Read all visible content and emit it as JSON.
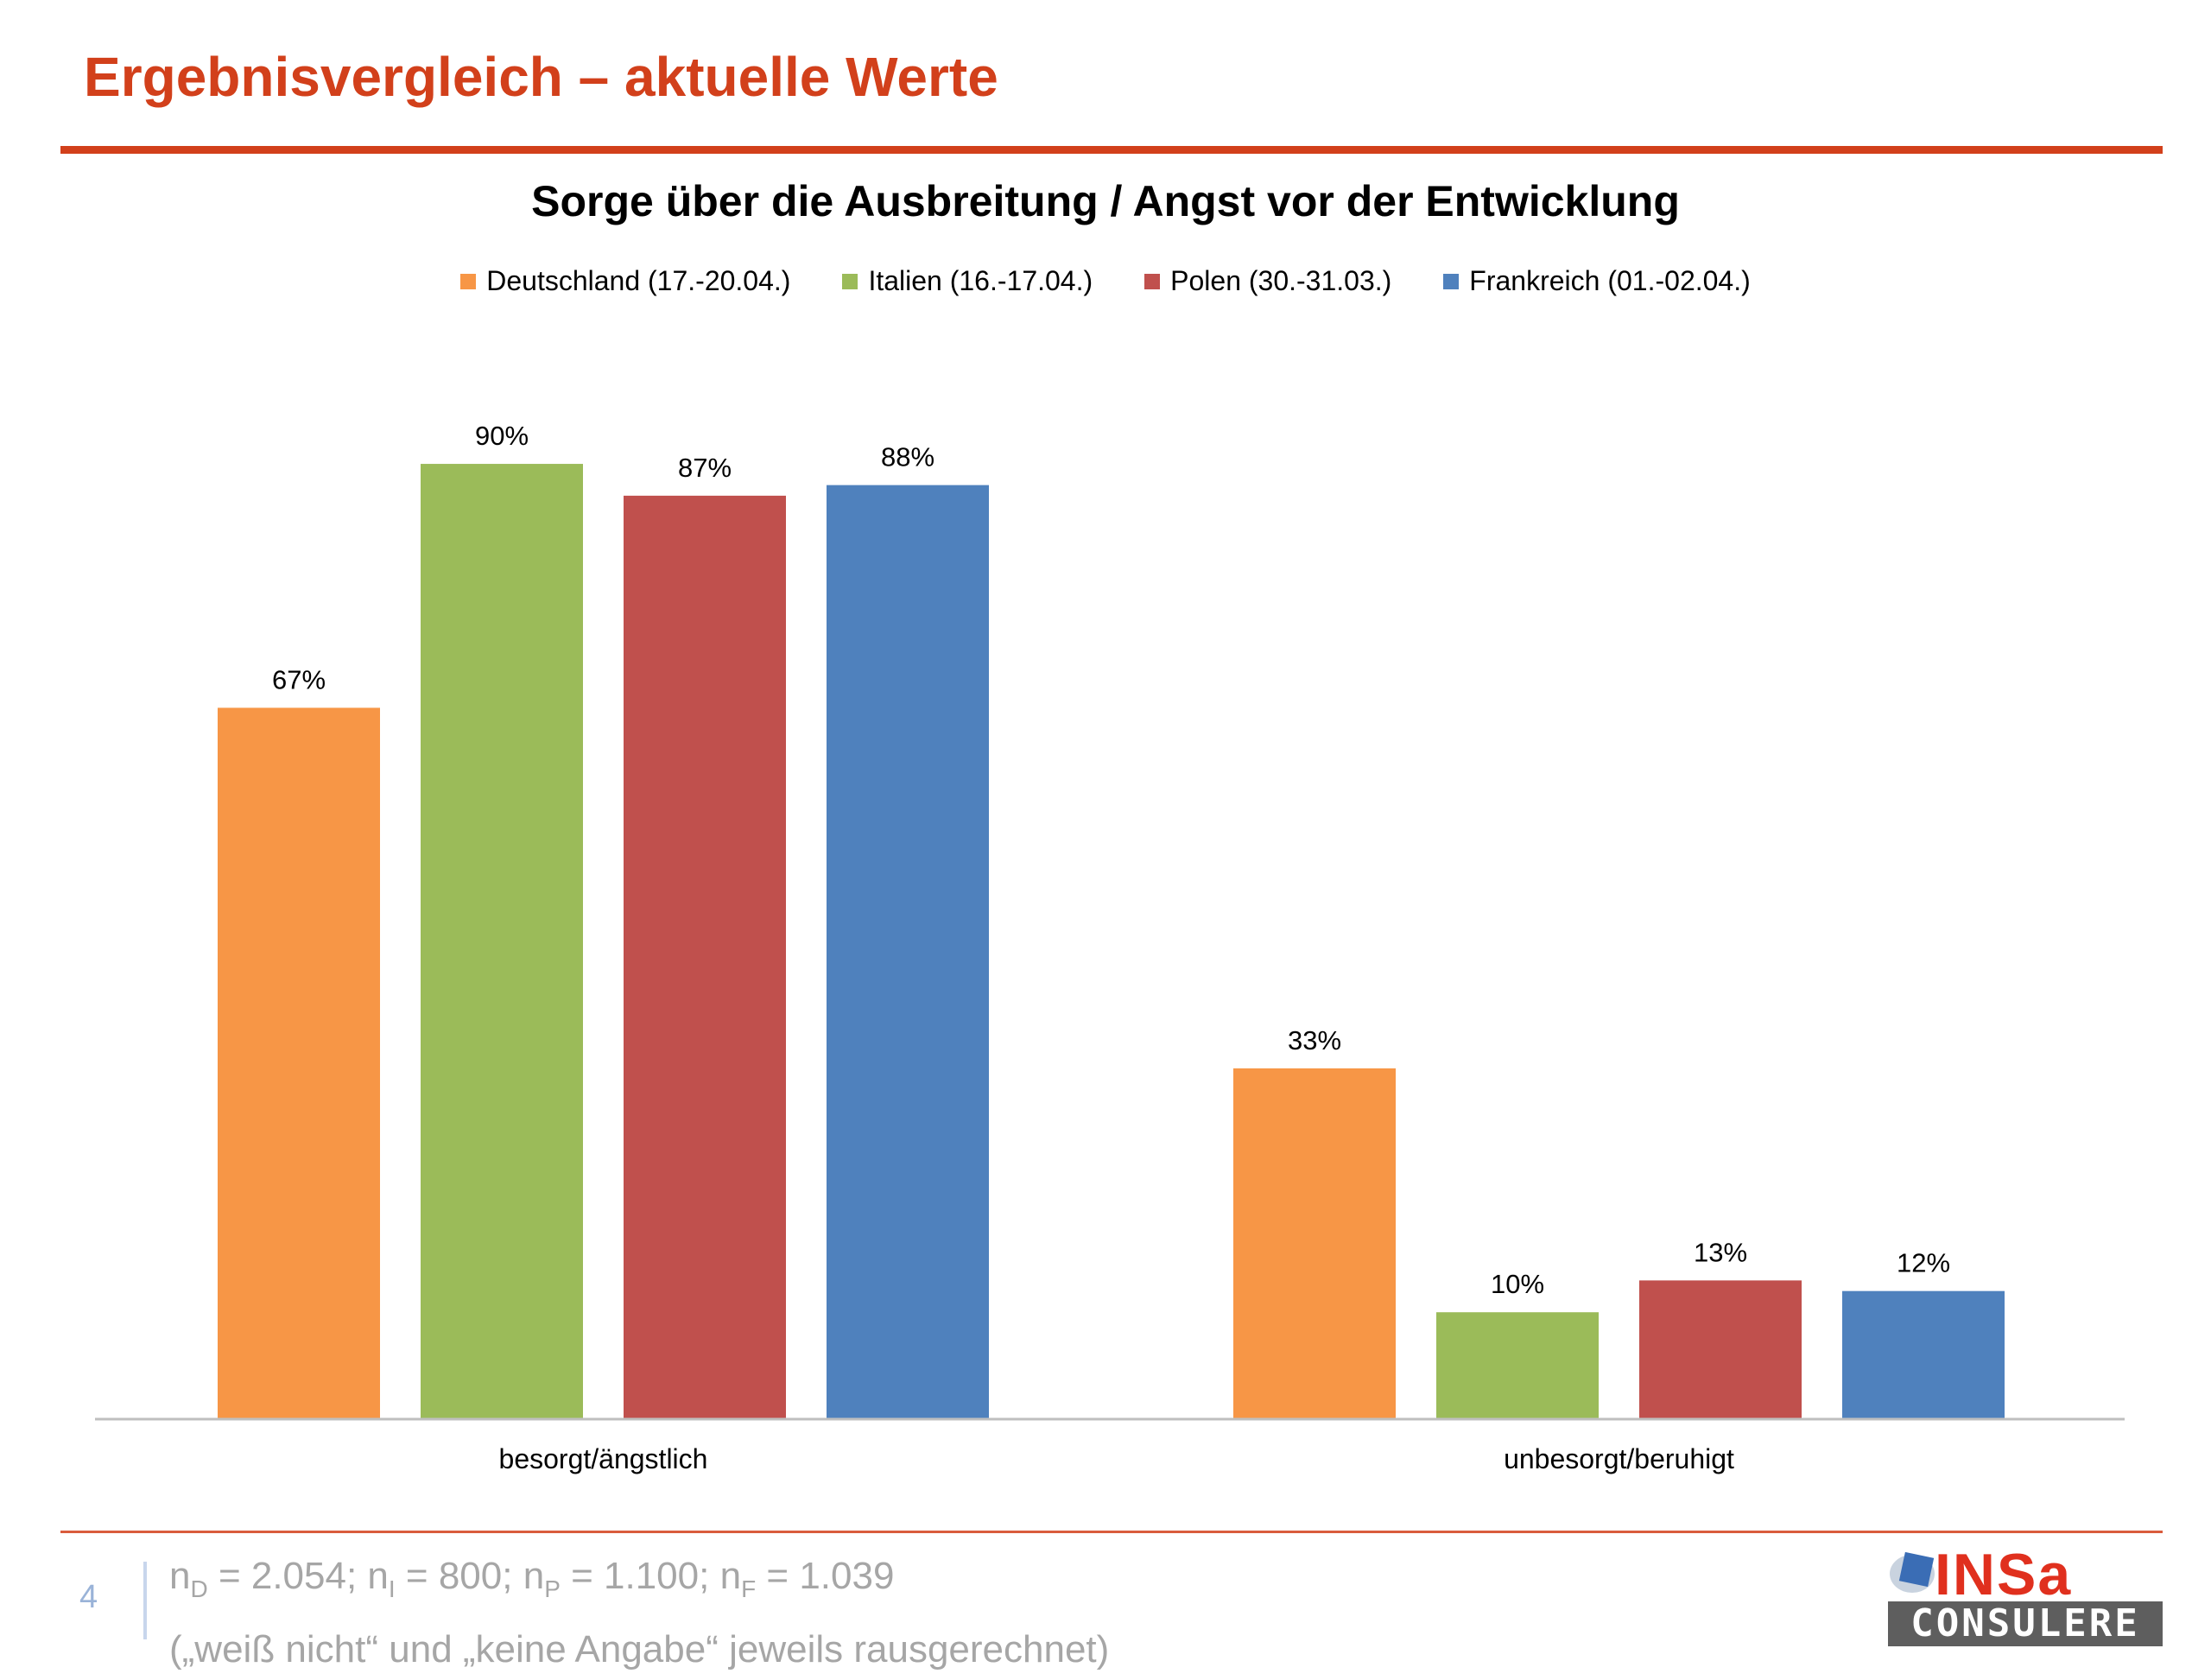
{
  "header": {
    "title": "Ergebnisvergleich – aktuelle Werte"
  },
  "chart_data": {
    "type": "bar",
    "title": "Sorge über die Ausbreitung / Angst vor der Entwicklung",
    "categories": [
      "besorgt/ängstlich",
      "unbesorgt/beruhigt"
    ],
    "series": [
      {
        "name": "Deutschland (17.-20.04.)",
        "color": "#f79646",
        "values": [
          67,
          33
        ],
        "labels": [
          "67%",
          "33%"
        ]
      },
      {
        "name": "Italien (16.-17.04.)",
        "color": "#9bbb59",
        "values": [
          90,
          10
        ],
        "labels": [
          "90%",
          "10%"
        ]
      },
      {
        "name": "Polen (30.-31.03.)",
        "color": "#c0504d",
        "values": [
          87,
          13
        ],
        "labels": [
          "87%",
          "13%"
        ]
      },
      {
        "name": "Frankreich (01.-02.04.)",
        "color": "#4f81bd",
        "values": [
          88,
          12
        ],
        "labels": [
          "88%",
          "12%"
        ]
      }
    ],
    "xlabel": "",
    "ylabel": "",
    "ylim": [
      0,
      100
    ],
    "grid": false,
    "legend_position": "top-center"
  },
  "footer": {
    "page_number": "4",
    "sample_sizes": {
      "parts": [
        {
          "base": "n",
          "sub": "D",
          "text": " = 2.054; "
        },
        {
          "base": "n",
          "sub": "I",
          "text": " = 800; "
        },
        {
          "base": "n",
          "sub": "P",
          "text": " = 1.100; "
        },
        {
          "base": "n",
          "sub": "F",
          "text": " = 1.039"
        }
      ]
    },
    "note": "(„weiß nicht“ und „keine Angabe“ jeweils rausgerechnet)"
  },
  "logo": {
    "word": "INSa",
    "band": "CONSULERE",
    "accent": "#e0301e",
    "mark_color": "#3a6db5"
  }
}
